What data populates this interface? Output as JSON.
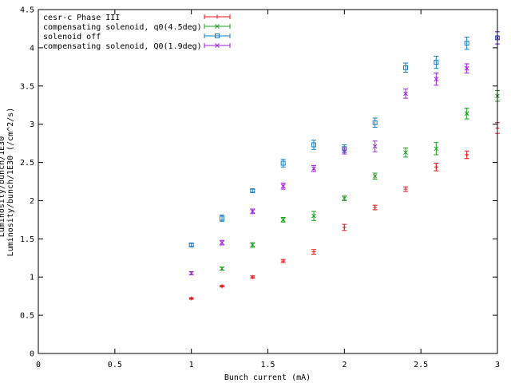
{
  "chart_data": {
    "type": "scatter",
    "xlabel": "Bunch current (mA)",
    "ylabel": "Luminosity/bunch/1E30 (/cm^2/s)",
    "ylabel_overlap": "Luminosity/bunch/1E30",
    "xlim": [
      0,
      3
    ],
    "ylim": [
      0,
      4.5
    ],
    "xticks": [
      "0",
      "0.5",
      "1",
      "1.5",
      "2",
      "2.5",
      "3"
    ],
    "yticks": [
      "0",
      "0.5",
      "1",
      "1.5",
      "2",
      "2.5",
      "3",
      "3.5",
      "4",
      "4.5"
    ],
    "grid": false,
    "legend_position": "top-left",
    "series": [
      {
        "name": "cesr-c Phase III",
        "color": "#e8151b",
        "marker": "plus",
        "x": [
          1.0,
          1.2,
          1.4,
          1.6,
          1.8,
          2.0,
          2.2,
          2.4,
          2.6,
          2.8,
          3.0
        ],
        "y": [
          0.72,
          0.88,
          1.0,
          1.21,
          1.33,
          1.65,
          1.91,
          2.15,
          2.44,
          2.6,
          2.95
        ],
        "err": [
          0.01,
          0.01,
          0.015,
          0.02,
          0.03,
          0.04,
          0.03,
          0.03,
          0.05,
          0.05,
          0.07
        ]
      },
      {
        "name": "compensating solenoid, q0(4.5deg)",
        "color": "#1aa11e",
        "marker": "cross",
        "x": [
          1.2,
          1.4,
          1.6,
          1.8,
          2.0,
          2.2,
          2.4,
          2.6,
          2.8,
          3.0
        ],
        "y": [
          1.11,
          1.42,
          1.75,
          1.8,
          2.03,
          2.32,
          2.63,
          2.68,
          3.14,
          3.37
        ],
        "err": [
          0.02,
          0.03,
          0.03,
          0.06,
          0.03,
          0.04,
          0.06,
          0.08,
          0.07,
          0.07
        ]
      },
      {
        "name": "solenoid off",
        "color": "#1a7ec9",
        "marker": "square",
        "x": [
          1.0,
          1.2,
          1.4,
          1.6,
          1.8,
          2.0,
          2.2,
          2.4,
          2.6,
          2.8,
          3.0
        ],
        "y": [
          1.42,
          1.77,
          2.13,
          2.49,
          2.73,
          2.68,
          3.02,
          3.74,
          3.81,
          4.06,
          4.13
        ],
        "err": [
          0.02,
          0.04,
          0.02,
          0.05,
          0.06,
          0.05,
          0.06,
          0.06,
          0.08,
          0.08,
          0.08
        ]
      },
      {
        "name": "compensating solenoid, Q0(1.9deg)",
        "color": "#a020e0",
        "marker": "x",
        "x": [
          1.0,
          1.2,
          1.4,
          1.6,
          1.8,
          2.0,
          2.2,
          2.4,
          2.6,
          2.8,
          3.0
        ],
        "y": [
          1.05,
          1.45,
          1.86,
          2.19,
          2.42,
          2.65,
          2.71,
          3.4,
          3.59,
          3.73,
          4.13
        ],
        "err": [
          0.02,
          0.03,
          0.03,
          0.04,
          0.04,
          0.04,
          0.07,
          0.06,
          0.08,
          0.06,
          0.08
        ]
      }
    ]
  }
}
